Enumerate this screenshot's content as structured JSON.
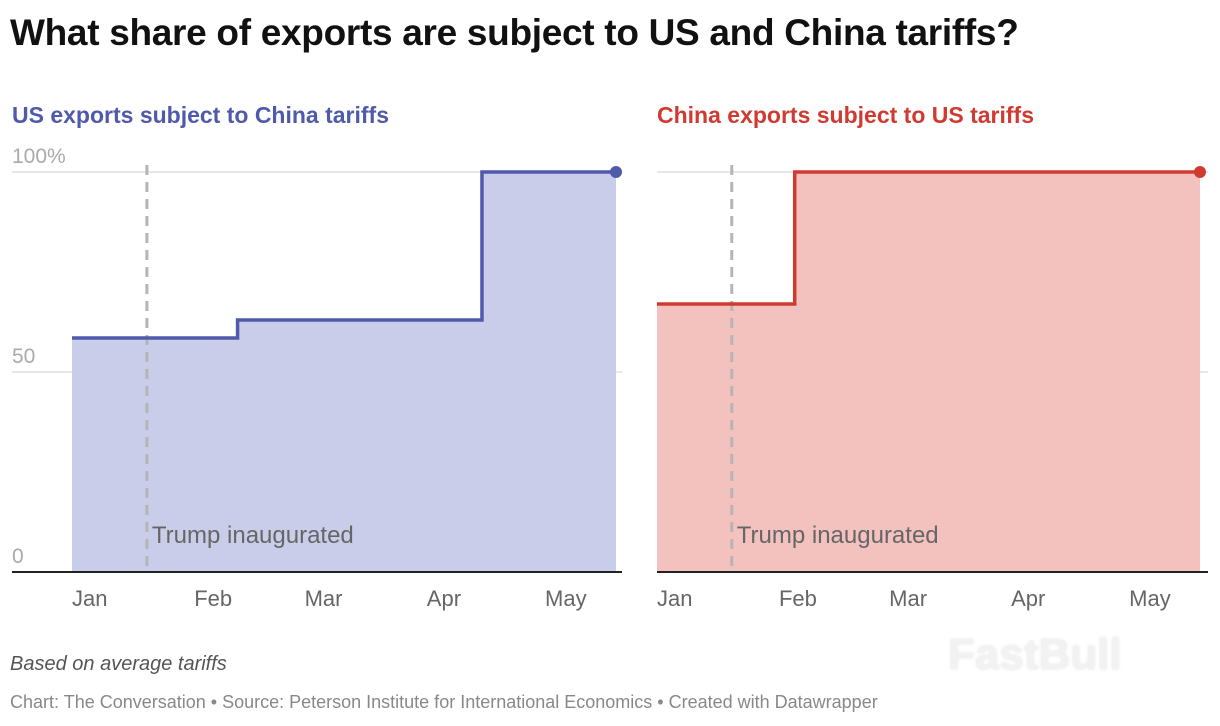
{
  "title": "What share of exports are subject to US and China tariffs?",
  "note": "Based on average tariffs",
  "footer": "Chart: The Conversation • Source: Peterson Institute for International Economics • Created with Datawrapper",
  "watermark": "FastBull",
  "chart_data": [
    {
      "type": "area",
      "title": "US exports subject to China tariffs",
      "color": "#4f5aab",
      "fill": "#c9cde9",
      "step": true,
      "x_range": [
        "2025-01-01",
        "2025-05-19"
      ],
      "ylim": [
        0,
        100
      ],
      "y_ticks": [
        "0",
        "50",
        "100%"
      ],
      "x_ticks": [
        "Jan",
        "Feb",
        "Mar",
        "Apr",
        "May"
      ],
      "grid": true,
      "points": [
        {
          "x": "2025-01-01",
          "y": 58.5
        },
        {
          "x": "2025-02-12",
          "y": 63
        },
        {
          "x": "2025-04-15",
          "y": 100
        },
        {
          "x": "2025-05-19",
          "y": 100
        }
      ],
      "annotation": {
        "x": "2025-01-20",
        "label": "Trump inaugurated"
      }
    },
    {
      "type": "area",
      "title": "China exports subject to US tariffs",
      "color": "#d03a30",
      "fill": "#f3c1be",
      "step": true,
      "x_range": [
        "2025-01-01",
        "2025-05-19"
      ],
      "ylim": [
        0,
        100
      ],
      "y_ticks": [],
      "x_ticks": [
        "Jan",
        "Feb",
        "Mar",
        "Apr",
        "May"
      ],
      "grid": true,
      "points": [
        {
          "x": "2025-01-01",
          "y": 67
        },
        {
          "x": "2025-02-05",
          "y": 100
        },
        {
          "x": "2025-05-19",
          "y": 100
        }
      ],
      "annotation": {
        "x": "2025-01-20",
        "label": "Trump inaugurated"
      }
    }
  ]
}
